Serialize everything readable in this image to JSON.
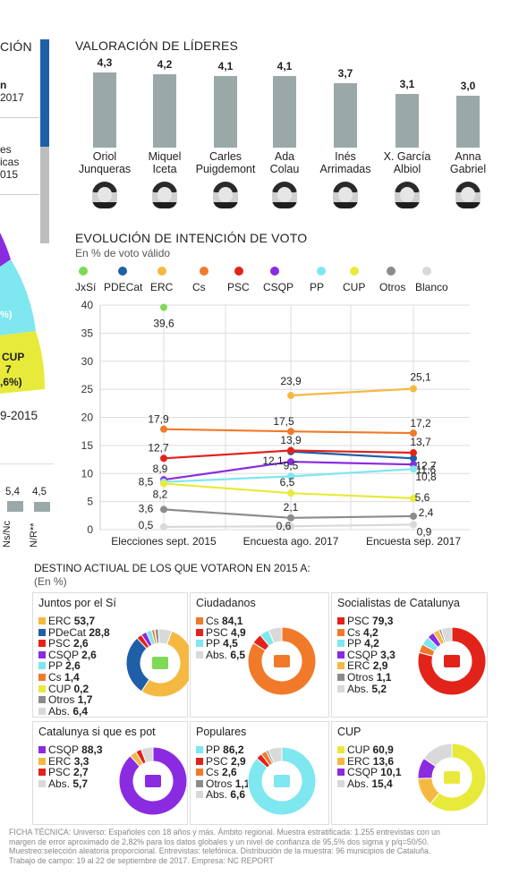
{
  "left_fragment": {
    "title_part": "CIÓN",
    "line1": "n",
    "line2": "2017",
    "line3": "es",
    "line4": "icas",
    "line5": "015",
    "pie_pct": "%)",
    "cup_label": "CUP",
    "cup_seats": "7",
    "cup_pct": ",6%)",
    "date": "9-2015",
    "bar_values": [
      "5,4",
      "4,5"
    ],
    "bar_labels": [
      "Ns/Nc",
      "N/R**"
    ],
    "colors": {
      "blue": "#1f5fa8",
      "grey": "#bdbdbd",
      "cyan": "#7ee7f0",
      "yellow": "#e8ea3b",
      "purple": "#8a2be2"
    }
  },
  "leaders": {
    "title": "VALORACIÓN DE LÍDERES",
    "items": [
      {
        "name1": "Oriol",
        "name2": "Junqueras",
        "value": "4,3"
      },
      {
        "name1": "Miquel",
        "name2": "Iceta",
        "value": "4,2"
      },
      {
        "name1": "Carles",
        "name2": "Puigdemont",
        "value": "4,1"
      },
      {
        "name1": "Ada",
        "name2": "Colau",
        "value": "4,1"
      },
      {
        "name1": "Inés",
        "name2": "Arrimadas",
        "value": "3,7"
      },
      {
        "name1": "X. García",
        "name2": "Albiol",
        "value": "3,1"
      },
      {
        "name1": "Anna",
        "name2": "Gabriel",
        "value": "3,0"
      }
    ]
  },
  "evolution": {
    "title": "EVOLUCIÓN DE INTENCIÓN DE VOTO",
    "subtitle": "En % de voto válido"
  },
  "chart_data": {
    "type": "line",
    "x": [
      "Elecciones sept. 2015",
      "Encuesta ago. 2017",
      "Encuesta sep. 2017"
    ],
    "ylim": [
      0,
      40
    ],
    "yticks": [
      0,
      5,
      10,
      15,
      20,
      25,
      30,
      35,
      40
    ],
    "legend": [
      "JxSí",
      "PDECat",
      "ERC",
      "Cs",
      "PSC",
      "CSQP",
      "PP",
      "CUP",
      "Otros",
      "Blanco"
    ],
    "series": [
      {
        "name": "JxSí",
        "color": "#7ed957",
        "values": [
          39.6,
          null,
          null
        ],
        "labels": [
          "39,6",
          "",
          ""
        ]
      },
      {
        "name": "PDECat",
        "color": "#1f5fa8",
        "values": [
          null,
          13.9,
          12.7
        ],
        "labels": [
          "",
          "13,9",
          "12,7"
        ]
      },
      {
        "name": "ERC",
        "color": "#f5b942",
        "values": [
          null,
          23.9,
          25.1
        ],
        "labels": [
          "",
          "23,9",
          "25,1"
        ]
      },
      {
        "name": "Cs",
        "color": "#f07a2a",
        "values": [
          17.9,
          17.5,
          17.2
        ],
        "labels": [
          "17,9",
          "17,5",
          "17,2"
        ]
      },
      {
        "name": "PSC",
        "color": "#e2231a",
        "values": [
          12.7,
          14.1,
          13.7
        ],
        "labels": [
          "12,7",
          "",
          "13,7"
        ]
      },
      {
        "name": "CSQP",
        "color": "#8a2be2",
        "values": [
          8.9,
          12.1,
          11.6
        ],
        "labels": [
          "8,9",
          "12,1",
          "11,6"
        ]
      },
      {
        "name": "PP",
        "color": "#7ee7f0",
        "values": [
          8.5,
          9.5,
          10.8
        ],
        "labels": [
          "8,5",
          "9,5",
          "10,8"
        ]
      },
      {
        "name": "CUP",
        "color": "#e8ea3b",
        "values": [
          8.2,
          6.5,
          5.6
        ],
        "labels": [
          "8,2",
          "6,5",
          "5,6"
        ]
      },
      {
        "name": "Otros",
        "color": "#8c8c8c",
        "values": [
          3.6,
          2.1,
          2.4
        ],
        "labels": [
          "3,6",
          "2,1",
          "2,4"
        ]
      },
      {
        "name": "Blanco",
        "color": "#d9d9d9",
        "values": [
          0.5,
          0.6,
          0.9
        ],
        "labels": [
          "0,5",
          "0,6",
          "0,9"
        ]
      }
    ]
  },
  "destino": {
    "title": "DESTINO ACTIUAL DE LOS QUE VOTARON EN 2015 A:",
    "subtitle": "(En %)",
    "panels": [
      {
        "title": "Juntos por el Sí",
        "logo": "junts-pel-si-logo",
        "items": [
          {
            "label": "ERC",
            "value": "53,7",
            "color": "#f5b942"
          },
          {
            "label": "PDeCat",
            "value": "28,8",
            "color": "#1f5fa8"
          },
          {
            "label": "PSC",
            "value": "2,6",
            "color": "#e2231a"
          },
          {
            "label": "CSQP",
            "value": "2,6",
            "color": "#8a2be2"
          },
          {
            "label": "PP",
            "value": "2,6",
            "color": "#7ee7f0"
          },
          {
            "label": "Cs",
            "value": "1,4",
            "color": "#f07a2a"
          },
          {
            "label": "CUP",
            "value": "0,2",
            "color": "#e8ea3b"
          },
          {
            "label": "Otros",
            "value": "1,7",
            "color": "#8c8c8c"
          },
          {
            "label": "Abs.",
            "value": "6,4",
            "color": "#d9d9d9"
          }
        ]
      },
      {
        "title": "Ciudadanos",
        "logo": "cs-logo",
        "items": [
          {
            "label": "Cs",
            "value": "84,1",
            "color": "#f07a2a"
          },
          {
            "label": "PSC",
            "value": "4,9",
            "color": "#e2231a"
          },
          {
            "label": "PP",
            "value": "4,5",
            "color": "#7ee7f0"
          },
          {
            "label": "Abs.",
            "value": "6,5",
            "color": "#d9d9d9"
          }
        ]
      },
      {
        "title": "Socialistas de Catalunya",
        "logo": "psc-logo",
        "items": [
          {
            "label": "PSC",
            "value": "79,3",
            "color": "#e2231a"
          },
          {
            "label": "Cs",
            "value": "4,2",
            "color": "#f07a2a"
          },
          {
            "label": "PP",
            "value": "4,2",
            "color": "#7ee7f0"
          },
          {
            "label": "CSQP",
            "value": "3,3",
            "color": "#8a2be2"
          },
          {
            "label": "ERC",
            "value": "2,9",
            "color": "#f5b942"
          },
          {
            "label": "Otros",
            "value": "1,1",
            "color": "#8c8c8c"
          },
          {
            "label": "Abs.",
            "value": "5,2",
            "color": "#d9d9d9"
          }
        ]
      },
      {
        "title": "Catalunya si que es pot",
        "logo": "csqp-logo",
        "items": [
          {
            "label": "CSQP",
            "value": "88,3",
            "color": "#8a2be2"
          },
          {
            "label": "ERC",
            "value": "3,3",
            "color": "#f5b942"
          },
          {
            "label": "PSC",
            "value": "2,7",
            "color": "#e2231a"
          },
          {
            "label": "Abs.",
            "value": "5,7",
            "color": "#d9d9d9"
          }
        ]
      },
      {
        "title": "Populares",
        "logo": "pp-logo",
        "items": [
          {
            "label": "PP",
            "value": "86,2",
            "color": "#7ee7f0"
          },
          {
            "label": "PSC",
            "value": "2,9",
            "color": "#e2231a"
          },
          {
            "label": "Cs",
            "value": "2,6",
            "color": "#f07a2a"
          },
          {
            "label": "Otros",
            "value": "1,1",
            "color": "#8c8c8c"
          },
          {
            "label": "Abs.",
            "value": "6,6",
            "color": "#d9d9d9"
          }
        ]
      },
      {
        "title": "CUP",
        "logo": "cup-logo",
        "items": [
          {
            "label": "CUP",
            "value": "60,9",
            "color": "#e8ea3b"
          },
          {
            "label": "ERC",
            "value": "13,6",
            "color": "#f5b942"
          },
          {
            "label": "CSQP",
            "value": "10,1",
            "color": "#8a2be2"
          },
          {
            "label": "Abs.",
            "value": "15,4",
            "color": "#d9d9d9"
          }
        ]
      }
    ]
  },
  "footer": {
    "line1": "FICHA TÉCNICA: Universo: Españoles con 18 años y más. Ámbito regional. Muestra estratificada: 1.255 entrevistas con un",
    "line2": "margen de error aproximado de 2,82% para los datos globales y un nivel de confianza de 95,5% dos sigma y p/q=50/50.",
    "line3": "Muestreo:selección aleatoria proporcional. Entrevistas: telefónica. Distribución de la muestra: 96 municipios de Cataluña.",
    "line4": "Trabajo de campo: 19 al 22 de septiembre de 2017. Empresa: NC REPORT"
  }
}
